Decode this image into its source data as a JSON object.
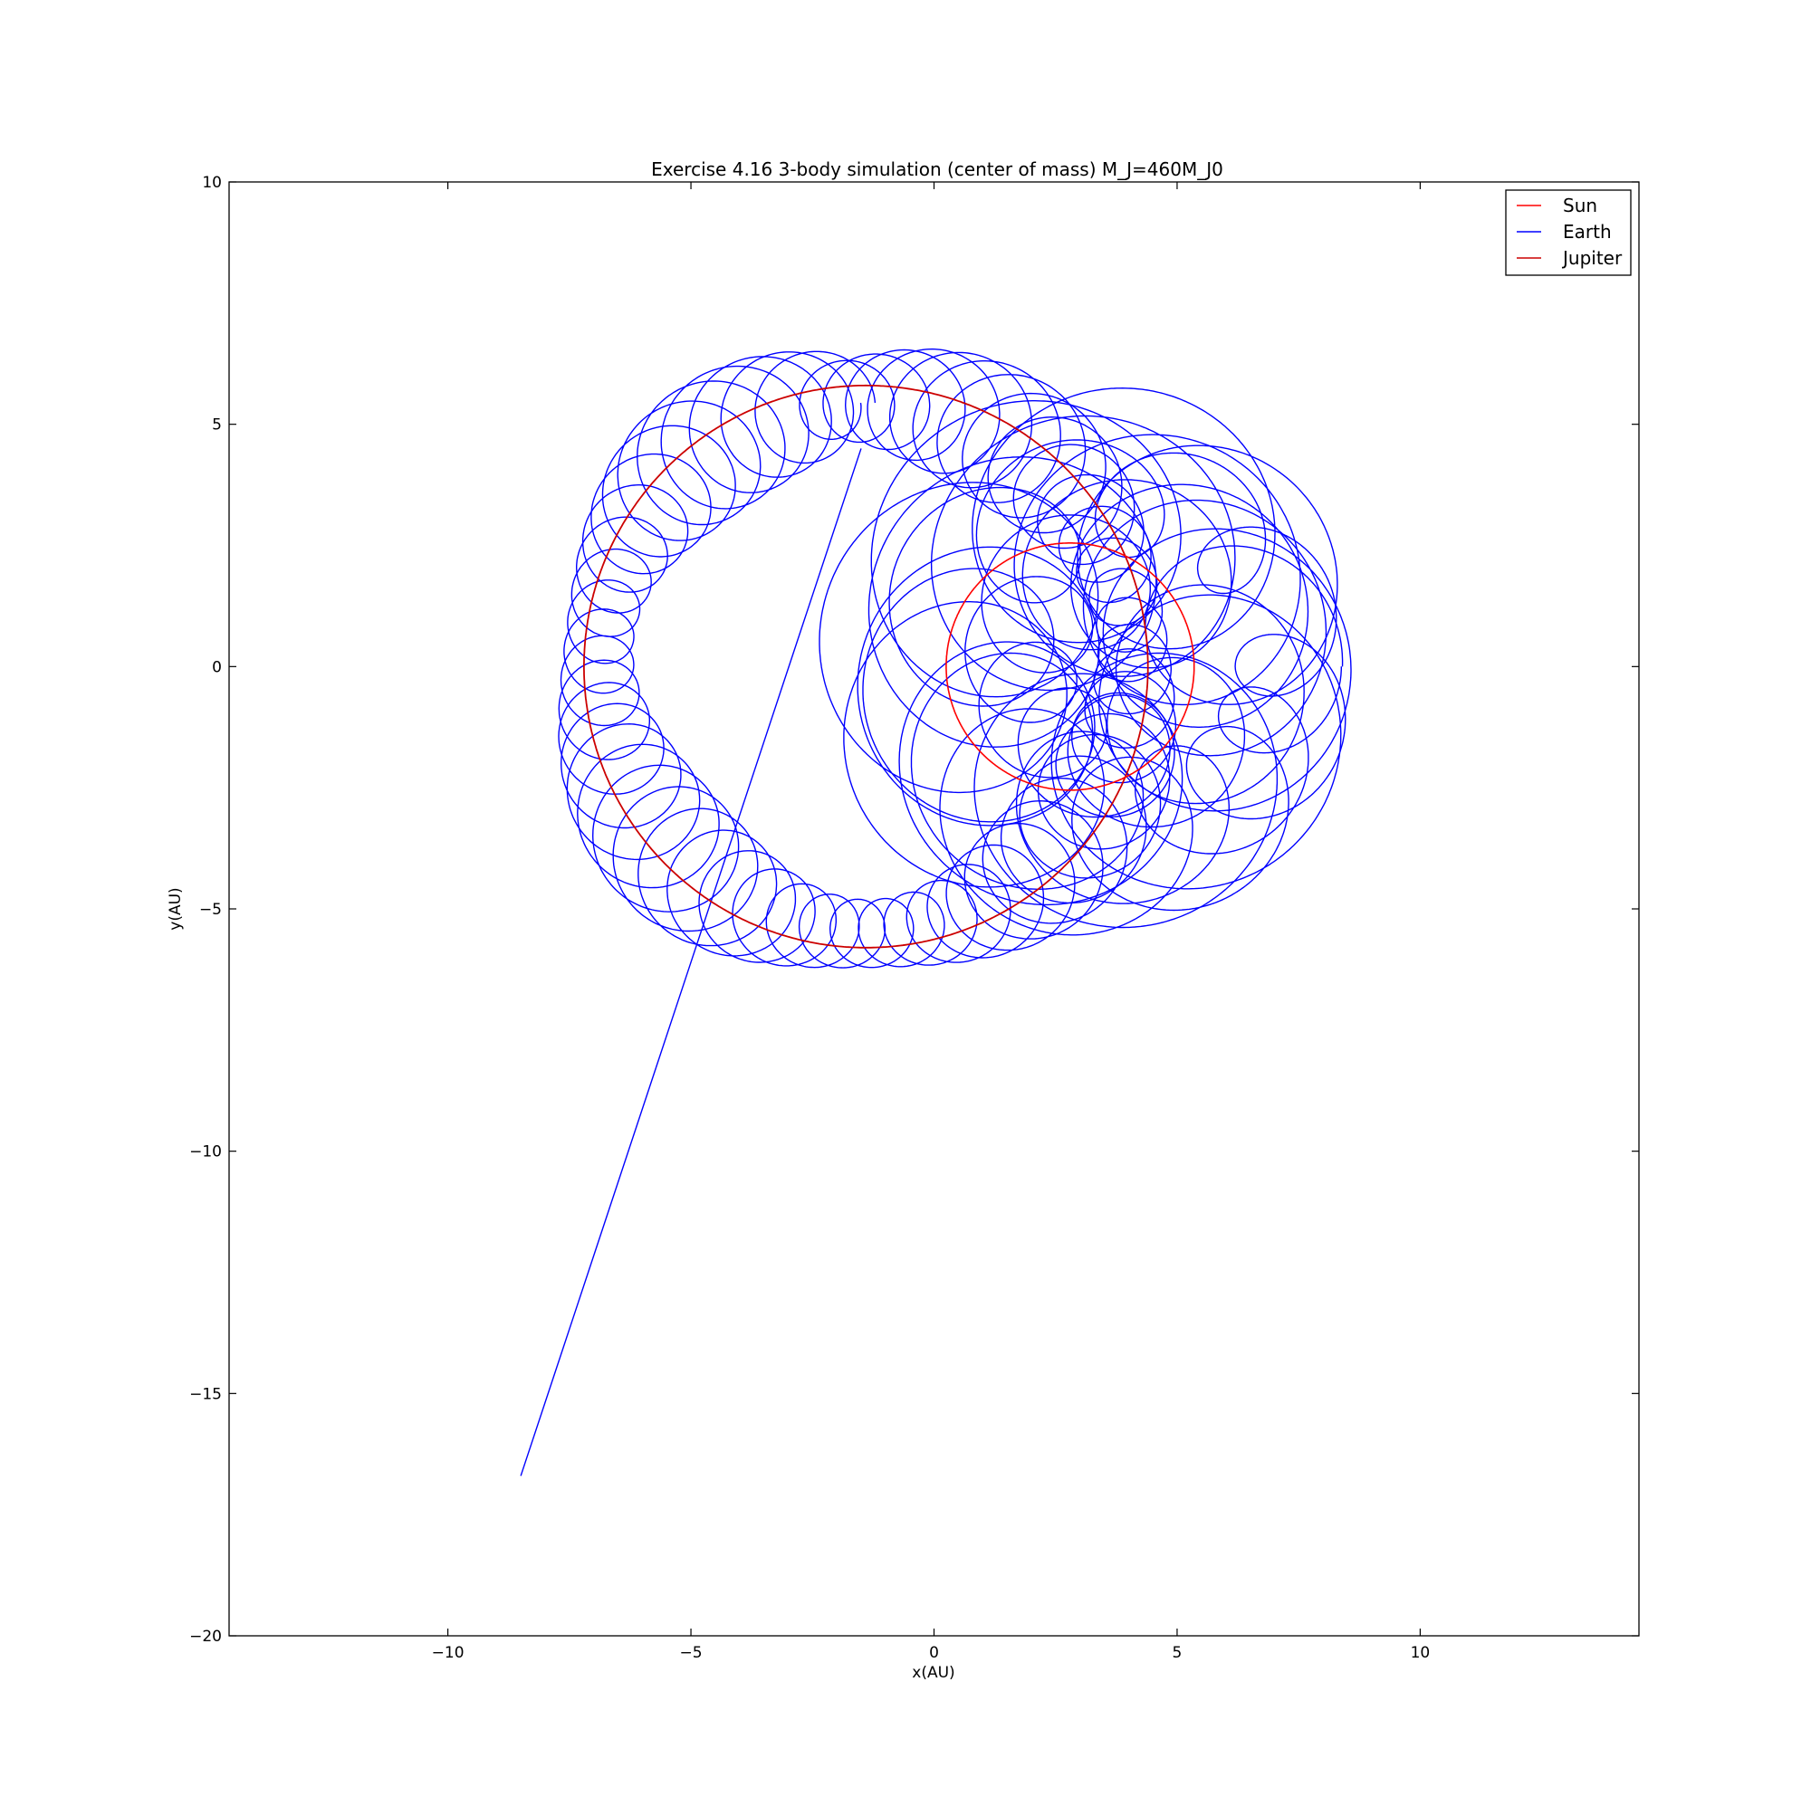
{
  "chart_data": {
    "type": "line",
    "title": "Exercise 4.16 3-body simulation (center of mass) M_J=460M_J0",
    "xlabel": "x(AU)",
    "ylabel": "y(AU)",
    "xlim": [
      -14.5,
      14.5
    ],
    "ylim": [
      -20,
      10
    ],
    "xticks": [
      -10,
      -5,
      0,
      5,
      10
    ],
    "xtick_labels": [
      "−10",
      "−5",
      "0",
      "5",
      "10"
    ],
    "yticks": [
      10,
      5,
      0,
      -5,
      -10,
      -15,
      -20
    ],
    "ytick_labels": [
      "10",
      "5",
      "0",
      "−5",
      "−10",
      "−15",
      "−20"
    ],
    "grid": false,
    "legend_position": "top-right",
    "series": [
      {
        "name": "Sun",
        "color": "#ff0000",
        "shape": "circle",
        "center": [
          2.8,
          0.0
        ],
        "radius": 2.55
      },
      {
        "name": "Earth",
        "color": "#0000ff",
        "shape": "looping-orbit",
        "description_points": {
          "escape_start": [
            -1.5,
            4.5
          ],
          "escape_end": [
            -8.5,
            -16.7
          ]
        }
      },
      {
        "name": "Jupiter",
        "color": "#cc0000",
        "shape": "circle",
        "center": [
          -1.4,
          0.0
        ],
        "radius": 5.8
      }
    ]
  }
}
